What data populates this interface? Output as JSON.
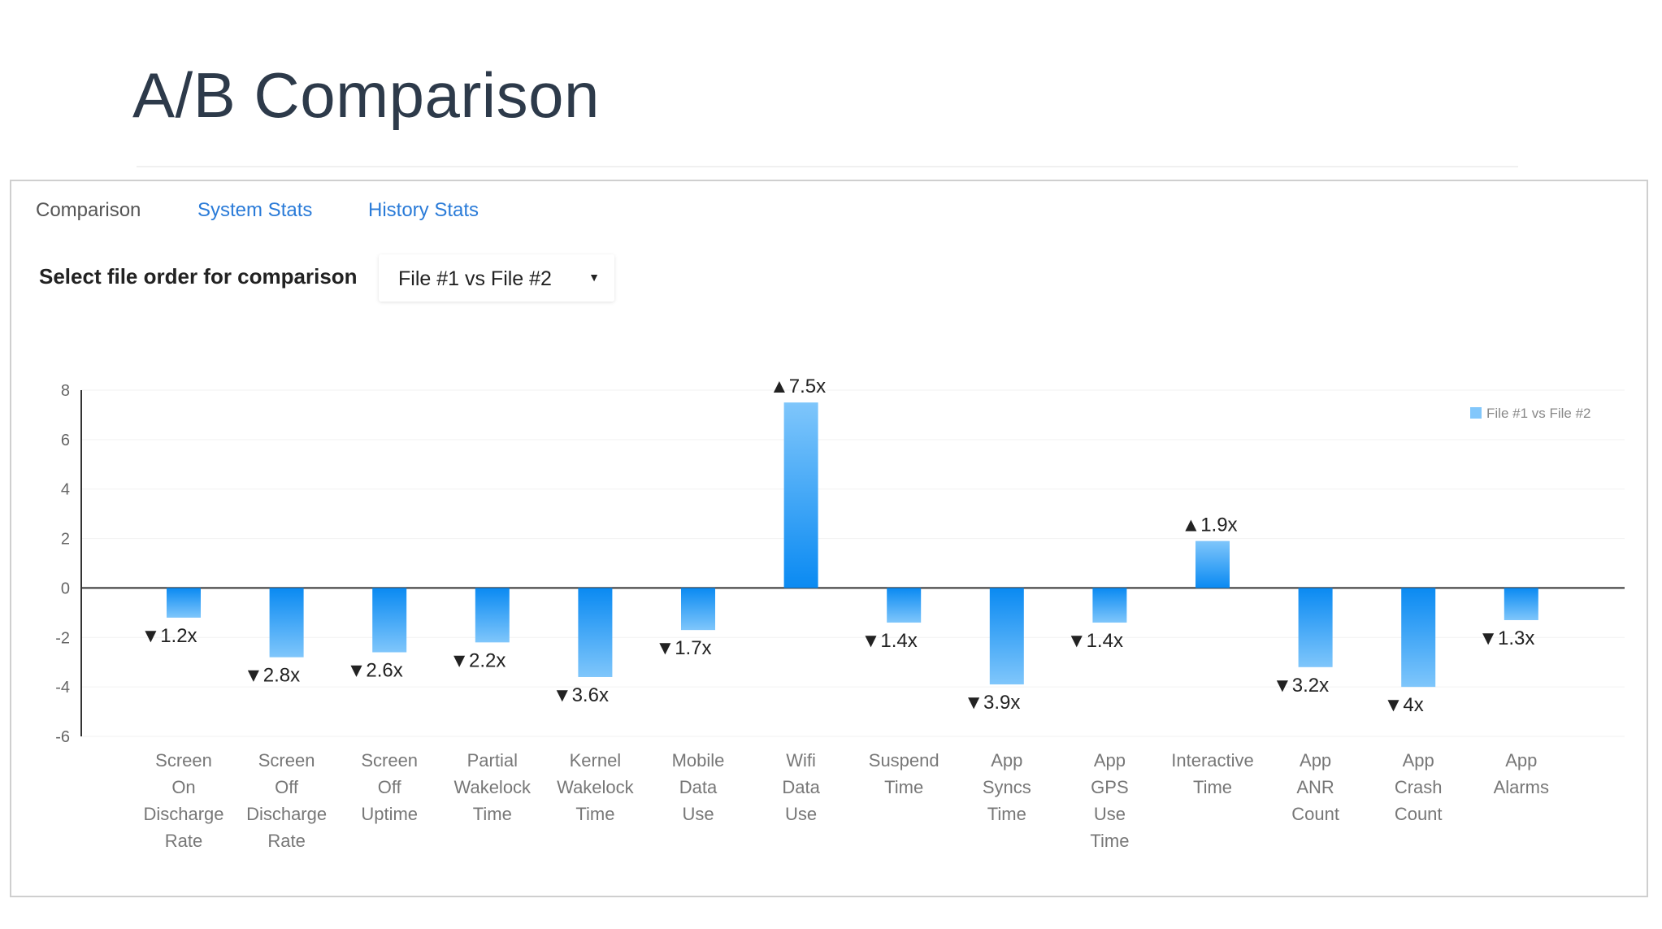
{
  "slide": {
    "title": "A/B Comparison"
  },
  "tabs": [
    {
      "label": "Comparison",
      "active": true
    },
    {
      "label": "System Stats",
      "active": false
    },
    {
      "label": "History Stats",
      "active": false
    }
  ],
  "file_order": {
    "label": "Select file order for comparison",
    "selected": "File #1 vs File #2",
    "arrow_icon": "triangle-down-icon"
  },
  "colors": {
    "link": "#2a7bd8",
    "bar_top": "#7fc6fb",
    "bar_bottom": "#0a8af2",
    "legend_swatch": "#82c7fb"
  },
  "chart_data": {
    "type": "bar",
    "title": "",
    "xlabel": "",
    "ylabel": "",
    "ylim": [
      -6,
      8
    ],
    "yticks": [
      -6,
      -4,
      -2,
      0,
      2,
      4,
      6,
      8
    ],
    "grid": true,
    "legend": {
      "label": "File #1 vs File #2",
      "position": "top-right"
    },
    "categories": [
      [
        "Screen",
        "On",
        "Discharge",
        "Rate"
      ],
      [
        "Screen",
        "Off",
        "Discharge",
        "Rate"
      ],
      [
        "Screen",
        "Off",
        "Uptime"
      ],
      [
        "Partial",
        "Wakelock",
        "Time"
      ],
      [
        "Kernel",
        "Wakelock",
        "Time"
      ],
      [
        "Mobile",
        "Data",
        "Use"
      ],
      [
        "Wifi",
        "Data",
        "Use"
      ],
      [
        "Suspend",
        "Time"
      ],
      [
        "App",
        "Syncs",
        "Time"
      ],
      [
        "App",
        "GPS",
        "Use",
        "Time"
      ],
      [
        "Interactive",
        "Time"
      ],
      [
        "App",
        "ANR",
        "Count"
      ],
      [
        "App",
        "Crash",
        "Count"
      ],
      [
        "App",
        "Alarms"
      ]
    ],
    "series": [
      {
        "name": "File #1 vs File #2",
        "values": [
          -1.2,
          -2.8,
          -2.6,
          -2.2,
          -3.6,
          -1.7,
          7.5,
          -1.4,
          -3.9,
          -1.4,
          1.9,
          -3.2,
          -4.0,
          -1.3
        ],
        "labels": [
          "▼1.2x",
          "▼2.8x",
          "▼2.6x",
          "▼2.2x",
          "▼3.6x",
          "▼1.7x",
          "▲7.5x",
          "▼1.4x",
          "▼3.9x",
          "▼1.4x",
          "▲1.9x",
          "▼3.2x",
          "▼4x",
          "▼1.3x"
        ]
      }
    ]
  }
}
